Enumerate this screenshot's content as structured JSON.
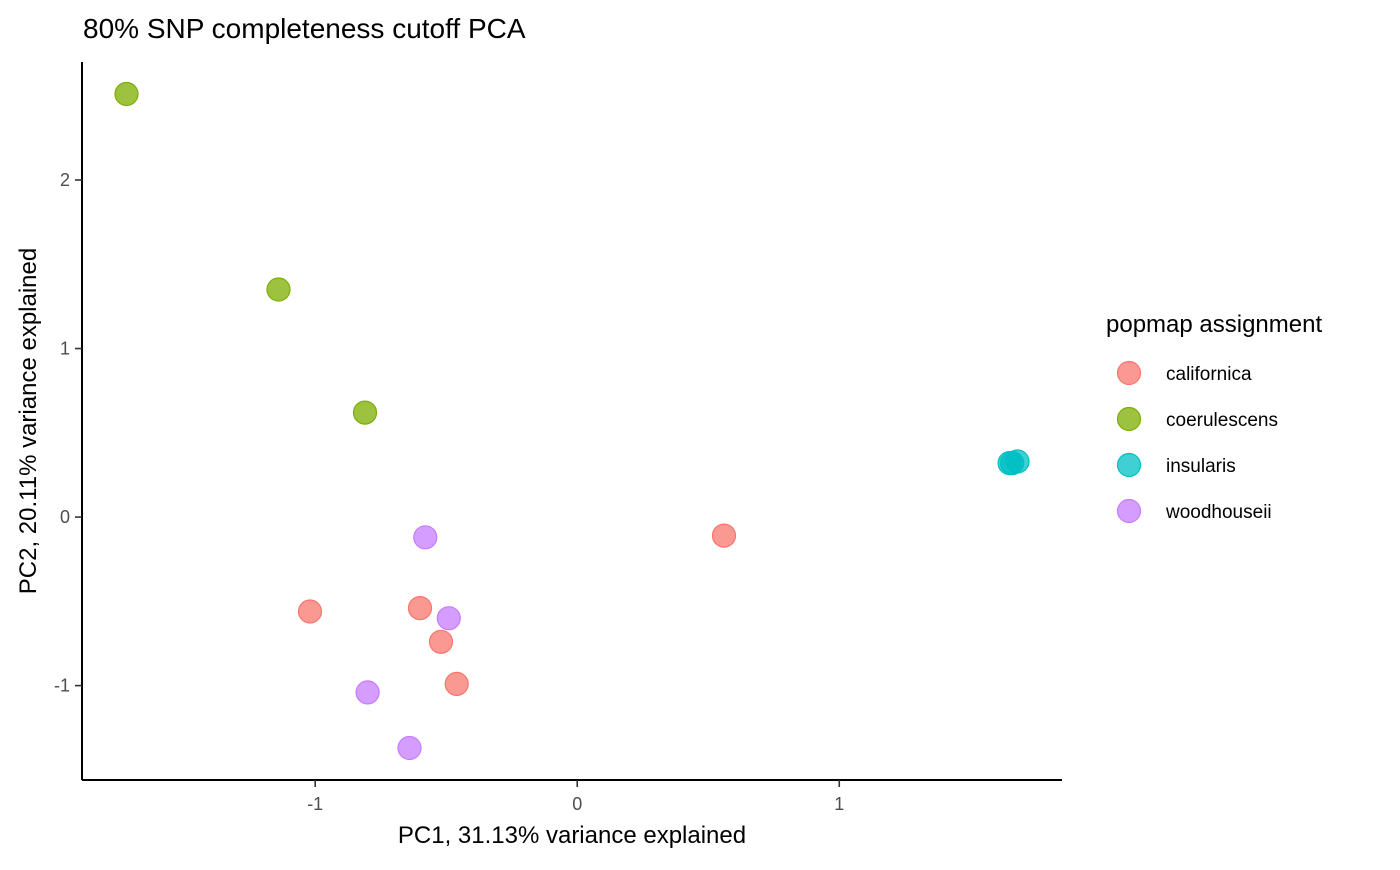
{
  "chart_data": {
    "type": "scatter",
    "title": "80% SNP completeness cutoff PCA",
    "xlabel": "PC1, 31.13% variance explained",
    "ylabel": "PC2, 20.11% variance explained",
    "xlim": [
      -1.89,
      1.85
    ],
    "ylim": [
      -1.56,
      2.7
    ],
    "xticks": [
      -1,
      0,
      1
    ],
    "xtick_labels": [
      "-1",
      "0",
      "1"
    ],
    "yticks": [
      -1,
      0,
      1,
      2
    ],
    "ytick_labels": [
      "-1",
      "0",
      "1",
      "2"
    ],
    "grid": false,
    "legend": {
      "title": "popmap assignment",
      "position": "right"
    },
    "series": [
      {
        "name": "californica",
        "color": "#F8766D",
        "points": [
          {
            "x": 0.56,
            "y": -0.11
          },
          {
            "x": -1.02,
            "y": -0.56
          },
          {
            "x": -0.6,
            "y": -0.54
          },
          {
            "x": -0.52,
            "y": -0.74
          },
          {
            "x": -0.46,
            "y": -0.99
          }
        ]
      },
      {
        "name": "coerulescens",
        "color": "#7CAE00",
        "points": [
          {
            "x": -1.72,
            "y": 2.51
          },
          {
            "x": -1.14,
            "y": 1.35
          },
          {
            "x": -0.81,
            "y": 0.62
          }
        ]
      },
      {
        "name": "insularis",
        "color": "#00BFC4",
        "points": [
          {
            "x": 1.65,
            "y": 0.32
          },
          {
            "x": 1.68,
            "y": 0.33
          },
          {
            "x": 1.66,
            "y": 0.32
          }
        ]
      },
      {
        "name": "woodhouseii",
        "color": "#C77CFF",
        "points": [
          {
            "x": -0.58,
            "y": -0.12
          },
          {
            "x": -0.49,
            "y": -0.6
          },
          {
            "x": -0.8,
            "y": -1.04
          },
          {
            "x": -0.64,
            "y": -1.37
          }
        ]
      }
    ]
  }
}
